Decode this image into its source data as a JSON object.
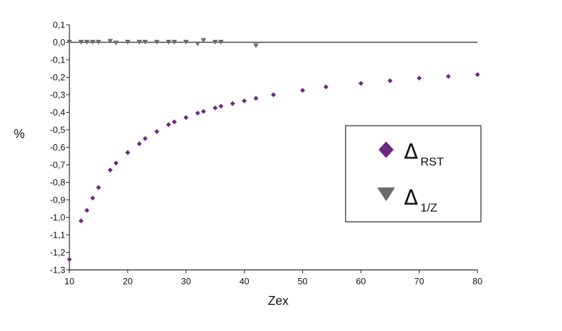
{
  "chart_data": {
    "type": "scatter",
    "xlabel": "Zex",
    "ylabel": "%",
    "xlim": [
      10,
      80
    ],
    "ylim": [
      -1.3,
      0.1
    ],
    "x_ticks": [
      "10",
      "20",
      "30",
      "40",
      "50",
      "60",
      "70",
      "80"
    ],
    "y_ticks": [
      "0,1",
      "0,0",
      "-0,1",
      "-0,2",
      "-0,3",
      "-0,4",
      "-0,5",
      "-0,6",
      "-0,7",
      "-0,8",
      "-0,9",
      "-1,0",
      "-1,1",
      "-1,2",
      "-1,3"
    ],
    "grid": false,
    "reference_line_y": 0,
    "legend_position": "right",
    "series": [
      {
        "name": "Δ",
        "subscript": "RST",
        "marker": "diamond",
        "color": "#6e2a82",
        "points": [
          [
            10,
            -1.24
          ],
          [
            12,
            -1.02
          ],
          [
            13,
            -0.96
          ],
          [
            14,
            -0.89
          ],
          [
            15,
            -0.83
          ],
          [
            17,
            -0.73
          ],
          [
            18,
            -0.69
          ],
          [
            20,
            -0.63
          ],
          [
            22,
            -0.58
          ],
          [
            23,
            -0.55
          ],
          [
            25,
            -0.51
          ],
          [
            27,
            -0.47
          ],
          [
            28,
            -0.455
          ],
          [
            30,
            -0.43
          ],
          [
            32,
            -0.405
          ],
          [
            33,
            -0.395
          ],
          [
            35,
            -0.375
          ],
          [
            36,
            -0.365
          ],
          [
            38,
            -0.35
          ],
          [
            40,
            -0.335
          ],
          [
            42,
            -0.32
          ],
          [
            45,
            -0.3
          ],
          [
            50,
            -0.275
          ],
          [
            54,
            -0.255
          ],
          [
            60,
            -0.235
          ],
          [
            65,
            -0.22
          ],
          [
            70,
            -0.205
          ],
          [
            75,
            -0.195
          ],
          [
            80,
            -0.185
          ]
        ]
      },
      {
        "name": "Δ",
        "subscript": "1/Z",
        "marker": "triangle-down",
        "color": "#6b6b6b",
        "points": [
          [
            10,
            0.0
          ],
          [
            12,
            0.0
          ],
          [
            13,
            0.0
          ],
          [
            14,
            0.0
          ],
          [
            15,
            0.0
          ],
          [
            17,
            0.005
          ],
          [
            18,
            -0.005
          ],
          [
            20,
            0.0
          ],
          [
            22,
            0.0
          ],
          [
            23,
            0.0
          ],
          [
            25,
            0.0
          ],
          [
            27,
            0.0
          ],
          [
            28,
            0.0
          ],
          [
            30,
            0.0
          ],
          [
            32,
            -0.01
          ],
          [
            33,
            0.01
          ],
          [
            35,
            0.0
          ],
          [
            36,
            0.0
          ],
          [
            42,
            -0.02
          ]
        ]
      }
    ]
  }
}
